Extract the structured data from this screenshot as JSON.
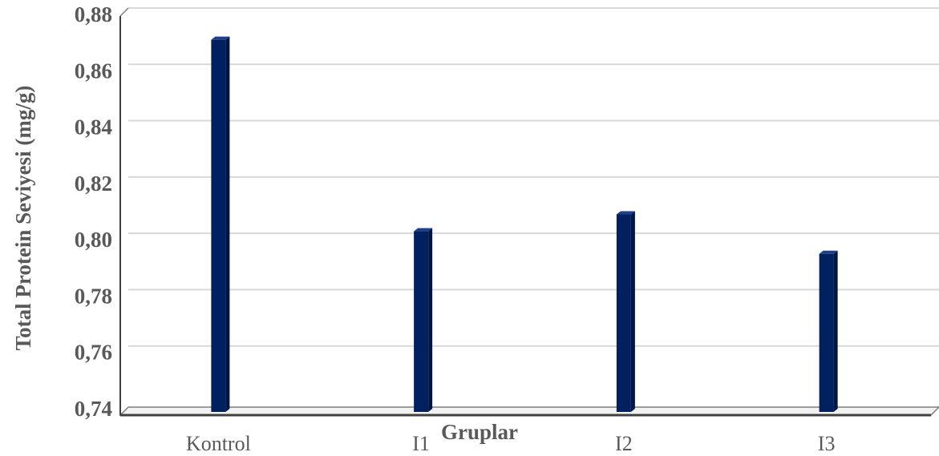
{
  "chart_data": {
    "type": "bar",
    "categories": [
      "Kontrol",
      "I1",
      "I2",
      "I3"
    ],
    "values": [
      0.871,
      0.803,
      0.809,
      0.795
    ],
    "xlabel": "Gruplar",
    "ylabel": "Total Protein Seviyesi (mg/g)",
    "ylim": [
      0.74,
      0.88
    ],
    "yticks": [
      "0,74",
      "0,76",
      "0,78",
      "0,80",
      "0,82",
      "0,84",
      "0,86",
      "0,88"
    ],
    "grid": true,
    "bar_color": "#002060",
    "bar_side_color": "#001540",
    "bar_top_color": "#1f3f86"
  }
}
